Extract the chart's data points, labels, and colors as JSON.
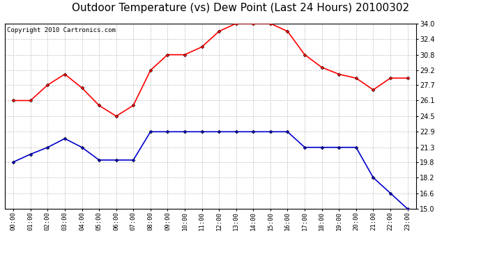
{
  "title": "Outdoor Temperature (vs) Dew Point (Last 24 Hours) 20100302",
  "copyright": "Copyright 2010 Cartronics.com",
  "x_labels": [
    "00:00",
    "01:00",
    "02:00",
    "03:00",
    "04:00",
    "05:00",
    "06:00",
    "07:00",
    "08:00",
    "09:00",
    "10:00",
    "11:00",
    "12:00",
    "13:00",
    "14:00",
    "15:00",
    "16:00",
    "17:00",
    "18:00",
    "19:00",
    "20:00",
    "21:00",
    "22:00",
    "23:00"
  ],
  "temp_data": [
    26.1,
    26.1,
    27.7,
    28.8,
    27.4,
    25.6,
    24.5,
    25.6,
    29.2,
    30.8,
    30.8,
    31.6,
    33.2,
    34.0,
    34.0,
    34.0,
    33.2,
    30.8,
    29.5,
    28.8,
    28.4,
    27.2,
    28.4,
    28.4
  ],
  "dew_data": [
    19.8,
    20.6,
    21.3,
    22.2,
    21.3,
    20.0,
    20.0,
    20.0,
    22.9,
    22.9,
    22.9,
    22.9,
    22.9,
    22.9,
    22.9,
    22.9,
    22.9,
    21.3,
    21.3,
    21.3,
    21.3,
    18.2,
    16.6,
    15.0
  ],
  "temp_color": "#ff0000",
  "dew_color": "#0000cc",
  "bg_color": "#ffffff",
  "plot_bg_color": "#ffffff",
  "grid_color": "#b0b0b0",
  "ylim": [
    15.0,
    34.0
  ],
  "ytick_values": [
    15.0,
    16.6,
    18.2,
    19.8,
    21.3,
    22.9,
    24.5,
    26.1,
    27.7,
    29.2,
    30.8,
    32.4,
    34.0
  ],
  "title_fontsize": 11,
  "copyright_fontsize": 6.5,
  "marker": "D",
  "marker_size": 2.5,
  "line_width": 1.2
}
